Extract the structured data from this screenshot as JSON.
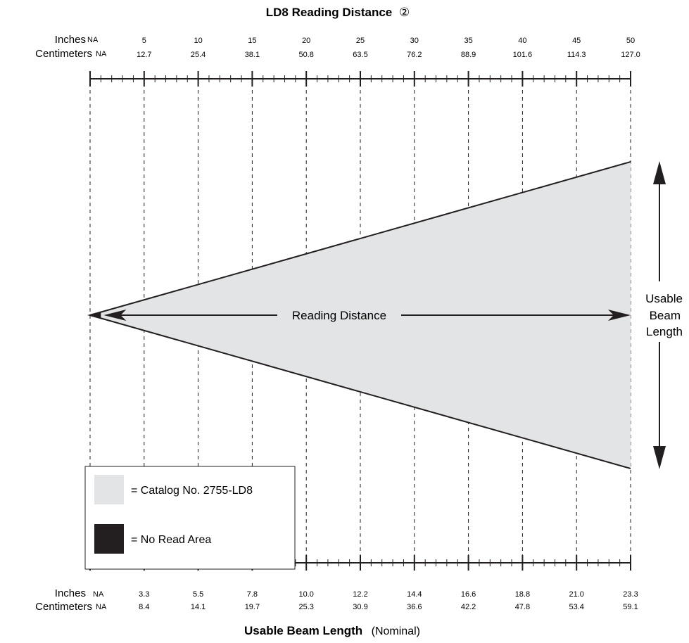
{
  "chart_data": {
    "type": "area",
    "title": "LD8 Reading Distance",
    "title_note": "②",
    "top_axis": {
      "units": [
        "Inches",
        "Centimeters"
      ],
      "na_label": "NA",
      "inches": [
        "5",
        "10",
        "15",
        "20",
        "25",
        "30",
        "35",
        "40",
        "45",
        "50"
      ],
      "centimeters": [
        "12.7",
        "25.4",
        "38.1",
        "50.8",
        "63.5",
        "76.2",
        "88.9",
        "101.6",
        "114.3",
        "127.0"
      ]
    },
    "bottom_axis": {
      "units": [
        "Inches",
        "Centimeters"
      ],
      "na_label": "NA",
      "inches": [
        "3.3",
        "5.5",
        "7.8",
        "10.0",
        "12.2",
        "14.4",
        "16.6",
        "18.8",
        "21.0",
        "23.3"
      ],
      "centimeters": [
        "8.4",
        "14.1",
        "19.7",
        "25.3",
        "30.9",
        "36.6",
        "42.2",
        "47.8",
        "53.4",
        "59.1"
      ],
      "title": "Usable Beam Length",
      "title_note": "(Nominal)"
    },
    "x_range": [
      0,
      50
    ],
    "x_unit": "inches",
    "beam_start": 0,
    "no_read_end": 1,
    "max_reading_distance": 50,
    "max_usable_beam_length": 23.3,
    "grid": true,
    "annotations": {
      "reading_distance": "Reading Distance",
      "usable_beam_length": [
        "Usable",
        "Beam",
        "Length"
      ]
    },
    "legend": {
      "placement": "bottom-left",
      "items": [
        {
          "label": "= Catalog No. 2755-LD8",
          "color": "#e3e4e5"
        },
        {
          "label": "= No Read Area",
          "color": "#231f20"
        }
      ]
    }
  }
}
